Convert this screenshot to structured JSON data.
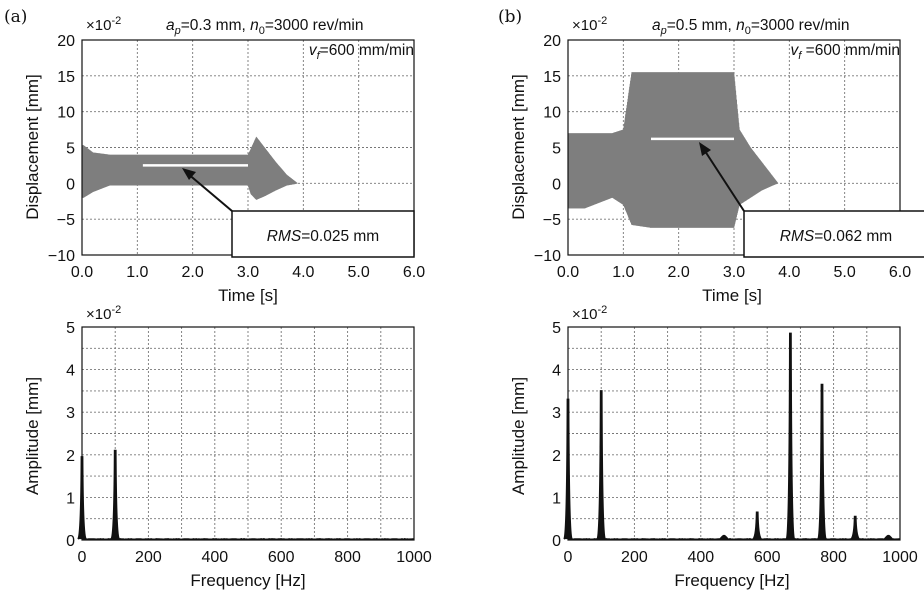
{
  "panels": [
    {
      "tag": "(a)",
      "annotation": {
        "ap_sym": "a",
        "ap_sub": "p",
        "ap_val": "=0.3 mm, ",
        "n_sym": "n",
        "n_sub": "0",
        "n_val": "=3000 rev/min",
        "vf_sym": "v",
        "vf_sub": "f",
        "vf_val": "=600 mm/min"
      },
      "rms": {
        "label": "RMS",
        "value": "=0.025 mm"
      },
      "time_exponent": "×10",
      "time_exponent_power": "-2",
      "freq_exponent": "×10",
      "freq_exponent_power": "-2"
    },
    {
      "tag": "(b)",
      "annotation": {
        "ap_sym": "a",
        "ap_sub": "p",
        "ap_val": "=0.5 mm, ",
        "n_sym": "n",
        "n_sub": "0",
        "n_val": "=3000 rev/min",
        "vf_sym": "v",
        "vf_sub": "f",
        "vf_val": " =600 mm/min"
      },
      "rms": {
        "label": "RMS",
        "value": "=0.062 mm"
      },
      "time_exponent": "×10",
      "time_exponent_power": "-2",
      "freq_exponent": "×10",
      "freq_exponent_power": "-2"
    }
  ],
  "chart_data": [
    {
      "type": "area",
      "panel": "(a)",
      "xlabel": "Time [s]",
      "ylabel": "Displacement [mm]",
      "xlim": [
        0,
        6
      ],
      "ylim": [
        -10,
        20
      ],
      "xticks": [
        "0.0",
        "1.0",
        "2.0",
        "3.0",
        "4.0",
        "5.0",
        "6.0"
      ],
      "yticks": [
        "−10",
        "−5",
        "0",
        "5",
        "10",
        "15",
        "20"
      ],
      "grid": true,
      "envelope": {
        "t": [
          0.0,
          0.03,
          0.2,
          0.5,
          1.0,
          2.0,
          3.0,
          3.05,
          3.15,
          3.3,
          3.5,
          3.7,
          3.85,
          3.9
        ],
        "upper": [
          5.3,
          5.3,
          4.3,
          4.0,
          4.0,
          4.0,
          4.0,
          4.8,
          6.5,
          5.0,
          3.0,
          1.2,
          0.3,
          0.0
        ],
        "lower": [
          -2.0,
          -2.0,
          -1.2,
          -0.3,
          -0.3,
          -0.3,
          -0.3,
          -1.5,
          -2.3,
          -1.8,
          -1.0,
          -0.3,
          -0.1,
          0.0
        ]
      },
      "rms_line": {
        "t": [
          1.1,
          3.0
        ],
        "y": 2.5
      },
      "rms_value_mm": 0.025
    },
    {
      "type": "line",
      "panel": "(a)",
      "xlabel": "Frequency [Hz]",
      "ylabel": "Amplitude [mm]",
      "xlim": [
        0,
        1000
      ],
      "ylim": [
        0,
        5
      ],
      "xticks": [
        "0",
        "200",
        "400",
        "600",
        "800",
        "1000"
      ],
      "yticks": [
        "0",
        "1",
        "2",
        "3",
        "4",
        "5"
      ],
      "grid": true,
      "peaks": {
        "x": [
          0,
          100
        ],
        "y": [
          1.95,
          2.1
        ]
      }
    },
    {
      "type": "area",
      "panel": "(b)",
      "xlabel": "Time [s]",
      "ylabel": "Displacement [mm]",
      "xlim": [
        0,
        6
      ],
      "ylim": [
        -10,
        20
      ],
      "xticks": [
        "0.0",
        "1.0",
        "2.0",
        "3.0",
        "4.0",
        "5.0",
        "6.0"
      ],
      "yticks": [
        "−10",
        "−5",
        "0",
        "5",
        "10",
        "15",
        "20"
      ],
      "grid": true,
      "envelope": {
        "t": [
          0.0,
          0.3,
          0.8,
          1.0,
          1.15,
          1.5,
          2.5,
          3.0,
          3.1,
          3.3,
          3.5,
          3.7,
          3.8
        ],
        "upper": [
          7.0,
          7.0,
          7.0,
          7.5,
          15.5,
          15.5,
          15.5,
          15.5,
          7.5,
          5.0,
          3.0,
          1.0,
          0.0
        ],
        "lower": [
          -3.5,
          -3.5,
          -2.0,
          -3.0,
          -5.8,
          -6.2,
          -6.2,
          -6.2,
          -3.0,
          -2.0,
          -1.0,
          -0.3,
          0.0
        ]
      },
      "rms_line": {
        "t": [
          1.5,
          3.0
        ],
        "y": 6.2
      },
      "rms_value_mm": 0.062
    },
    {
      "type": "line",
      "panel": "(b)",
      "xlabel": "Frequency [Hz]",
      "ylabel": "Amplitude [mm]",
      "xlim": [
        0,
        1000
      ],
      "ylim": [
        0,
        5
      ],
      "xticks": [
        "0",
        "200",
        "400",
        "600",
        "800",
        "1000"
      ],
      "yticks": [
        "0",
        "1",
        "2",
        "3",
        "4",
        "5"
      ],
      "grid": true,
      "peaks": {
        "x": [
          0,
          100,
          470,
          570,
          670,
          765,
          865,
          965
        ],
        "y": [
          3.3,
          3.5,
          0.1,
          0.65,
          4.85,
          3.65,
          0.55,
          0.1
        ]
      }
    }
  ]
}
